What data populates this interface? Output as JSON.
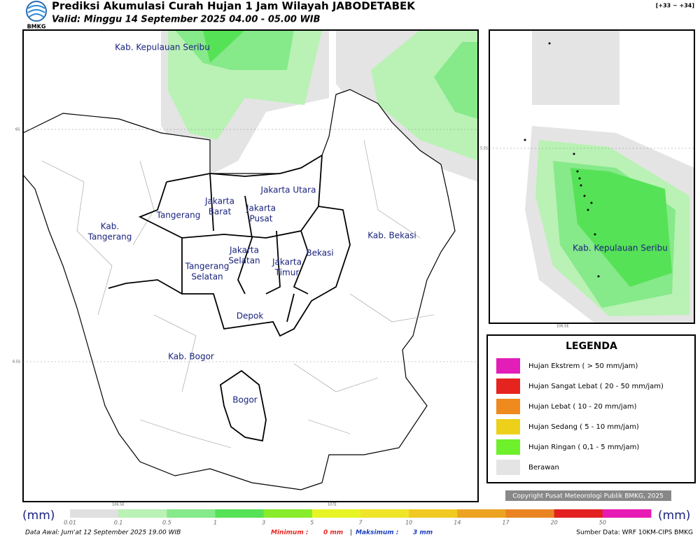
{
  "header": {
    "logo": "BMKG",
    "title": "Prediksi Akumulasi Curah Hujan 1 Jam Wilayah JABODETABEK",
    "valid": "Valid: Minggu 14 September 2025 04.00 - 05.00 WIB",
    "range": "[+33 ~ +34]"
  },
  "map": {
    "regions": [
      [
        "Kab. Kepulauan Seribu"
      ],
      [
        "Jakarta Utara"
      ],
      [
        "Jakarta",
        "Barat"
      ],
      [
        "Tangerang"
      ],
      [
        "Jakarta",
        "Pusat"
      ],
      [
        "Kab.",
        "Tangerang"
      ],
      [
        "Jakarta",
        "Selatan"
      ],
      [
        "Jakarta",
        "Timur"
      ],
      [
        "Bekasi"
      ],
      [
        "Kab. Bekasi"
      ],
      [
        "Tangerang",
        "Selatan"
      ],
      [
        "Depok"
      ],
      [
        "Kab. Bogor"
      ],
      [
        "Bogor"
      ]
    ],
    "lat_labels": [
      "6S",
      "6.5S"
    ],
    "lon_labels": [
      "106.5E",
      "107E"
    ]
  },
  "inset": {
    "region": "Kab. Kepulauan Seribu",
    "lat_label": "5.5S",
    "lon_label": "106.5E"
  },
  "legend": {
    "title": "LEGENDA",
    "items": [
      {
        "label": "Hujan Ekstrem ( > 50 mm/jam)",
        "color": "#e21db8"
      },
      {
        "label": "Hujan Sangat Lebat ( 20 - 50 mm/jam)",
        "color": "#e52420"
      },
      {
        "label": "Hujan Lebat ( 10 - 20 mm/jam)",
        "color": "#ee8a1e"
      },
      {
        "label": "Hujan Sedang ( 5 - 10 mm/jam)",
        "color": "#ecd01a"
      },
      {
        "label": "Hujan Ringan ( 0,1 - 5 mm/jam)",
        "color": "#6ef02a"
      },
      {
        "label": "Berawan",
        "color": "#e4e4e4"
      }
    ]
  },
  "copyright": "Copyright Pusat Meteorologi Publik BMKG, 2025",
  "colorbar": {
    "unit": "(mm)",
    "labels": [
      "0.01",
      "0.1",
      "0.5",
      "1",
      "3",
      "5",
      "7",
      "10",
      "14",
      "17",
      "20",
      "50"
    ],
    "colors": [
      "#e0e0e0",
      "#b9f2b4",
      "#86e98a",
      "#56e256",
      "#88ec2c",
      "#e7f526",
      "#f0e428",
      "#f0ca22",
      "#eda322",
      "#ea8423",
      "#e22020",
      "#e81ab4"
    ]
  },
  "footer": {
    "data_awal": "Data Awal: Jum'at 12 September 2025 19.00 WIB",
    "min_label": "Minimum :",
    "min_value": "0 mm",
    "separator": "|",
    "max_label": "Maksimum :",
    "max_value": "3 mm",
    "source": "Sumber Data: WRF 10KM-CIPS BMKG"
  }
}
